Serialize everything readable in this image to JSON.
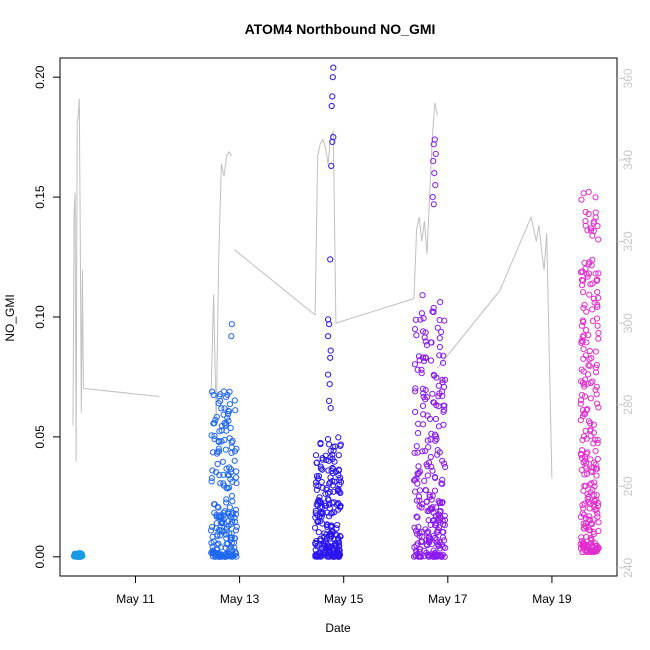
{
  "chart_data": {
    "type": "scatter",
    "title": "ATOM4 Northbound NO_GMI",
    "xlabel": "Date",
    "ylabel": "NO_GMI",
    "y2label": "",
    "xlim": [
      9.55,
      20.25
    ],
    "ylim": [
      -0.008,
      0.208
    ],
    "y2lim": [
      238,
      365
    ],
    "x_ticks": [
      11,
      13,
      15,
      17,
      19
    ],
    "x_tick_labels": [
      "May 11",
      "May 13",
      "May 15",
      "May 17",
      "May 19"
    ],
    "y_ticks": [
      0.0,
      0.05,
      0.1,
      0.15,
      0.2
    ],
    "y_tick_labels": [
      "0.00",
      "0.05",
      "0.10",
      "0.15",
      "0.20"
    ],
    "y2_ticks": [
      240,
      260,
      280,
      300,
      320,
      340,
      360
    ],
    "y2_tick_labels": [
      "240",
      "260",
      "280",
      "300",
      "320",
      "340",
      "360"
    ],
    "grid": false,
    "legend": "none",
    "colors": {
      "line": "#c0c0c0",
      "right_axis": "#c8c8c8",
      "frame": "#000000",
      "point_gradient": [
        "#1e90ff",
        "#0000ee",
        "#7f00ff",
        "#d000ff",
        "#ff1493"
      ]
    },
    "scatter_clusters": [
      {
        "x_range": [
          9.82,
          9.98
        ],
        "y_range": [
          0.0,
          0.0015
        ],
        "n": 60,
        "color": "#1a9ae6"
      },
      {
        "x_range": [
          12.45,
          12.95
        ],
        "y_range": [
          0.0,
          0.07
        ],
        "n": 200,
        "color": "#1f66f0",
        "outliers": [
          [
            12.85,
            0.097
          ],
          [
            12.84,
            0.092
          ],
          [
            12.7,
            0.069
          ]
        ]
      },
      {
        "x_range": [
          14.45,
          14.95
        ],
        "y_range": [
          0.0,
          0.05
        ],
        "n": 230,
        "color": "#2a16f0",
        "outliers": [
          [
            14.8,
            0.204
          ],
          [
            14.79,
            0.2
          ],
          [
            14.78,
            0.192
          ],
          [
            14.77,
            0.188
          ],
          [
            14.8,
            0.175
          ],
          [
            14.78,
            0.173
          ],
          [
            14.76,
            0.163
          ],
          [
            14.74,
            0.124
          ],
          [
            14.7,
            0.099
          ],
          [
            14.72,
            0.097
          ],
          [
            14.7,
            0.092
          ],
          [
            14.75,
            0.086
          ],
          [
            14.74,
            0.083
          ],
          [
            14.7,
            0.076
          ],
          [
            14.73,
            0.072
          ],
          [
            14.72,
            0.065
          ],
          [
            14.75,
            0.062
          ]
        ]
      },
      {
        "x_range": [
          16.35,
          16.95
        ],
        "y_range": [
          0.0,
          0.11
        ],
        "n": 260,
        "color": "#8a1aef",
        "outliers": [
          [
            16.75,
            0.174
          ],
          [
            16.73,
            0.172
          ],
          [
            16.77,
            0.168
          ],
          [
            16.72,
            0.165
          ],
          [
            16.74,
            0.16
          ],
          [
            16.76,
            0.155
          ],
          [
            16.71,
            0.15
          ],
          [
            16.73,
            0.147
          ],
          [
            16.8,
            0.006
          ],
          [
            16.82,
            0.005
          ]
        ]
      },
      {
        "x_range": [
          19.55,
          19.9
        ],
        "y_range": [
          0.002,
          0.153
        ],
        "n": 260,
        "color": "#e02fce"
      }
    ],
    "line_segments": [
      {
        "x": [
          9.8,
          9.82,
          9.84,
          9.86,
          9.88,
          9.9,
          9.92,
          9.94,
          9.96,
          9.98,
          10.0
        ],
        "y2": [
          275,
          327,
          332,
          266,
          349,
          351,
          355,
          320,
          278,
          313,
          284
        ]
      },
      {
        "x": [
          10.0,
          11.45
        ],
        "y2": [
          284,
          282
        ]
      },
      {
        "x": [
          12.45,
          12.5,
          12.55,
          12.6,
          12.65,
          12.7,
          12.75,
          12.8,
          12.85
        ],
        "y2": [
          282,
          307,
          276,
          317,
          339,
          336,
          341,
          342,
          341
        ]
      },
      {
        "x": [
          12.9,
          14.45
        ],
        "y2": [
          318,
          302
        ]
      },
      {
        "x": [
          14.45,
          14.5,
          14.55,
          14.6,
          14.65,
          14.7,
          14.75,
          14.8,
          14.85
        ],
        "y2": [
          302,
          341,
          344,
          345,
          343,
          339,
          346,
          347,
          300
        ]
      },
      {
        "x": [
          14.85,
          16.35
        ],
        "y2": [
          300,
          306
        ]
      },
      {
        "x": [
          16.35,
          16.4,
          16.45,
          16.5,
          16.55,
          16.6,
          16.65,
          16.7,
          16.75,
          16.8
        ],
        "y2": [
          306,
          323,
          326,
          320,
          325,
          317,
          331,
          345,
          354,
          351
        ]
      },
      {
        "x": [
          16.8,
          18.0
        ],
        "y2": [
          289,
          308
        ]
      },
      {
        "x": [
          18.0,
          18.6,
          18.7,
          18.75,
          18.8,
          18.85,
          18.9,
          19.0
        ],
        "y2": [
          308,
          326,
          320,
          324,
          318,
          313,
          322,
          262
        ]
      }
    ]
  }
}
